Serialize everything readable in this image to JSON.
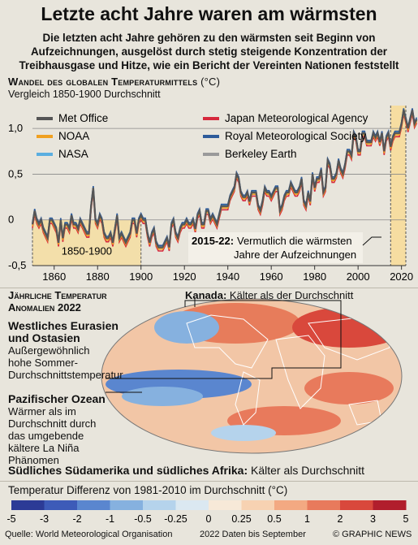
{
  "title": "Letzte acht Jahre waren am wärmsten",
  "subtitle": "Die letzten acht Jahre gehören zu den wärmsten seit Beginn von Aufzeichnungen, ausgelöst durch stetig steigende Konzentration der Treibhausgase und Hitze, wie ein Bericht der Vereinten Nationen feststellt",
  "line_chart": {
    "title": "Wandel des globalen Temperaturmittels",
    "unit": "(°C)",
    "subtitle": "Vergleich 1850-1900 Durchschnitt",
    "baseline_label": "1850-1900",
    "annotation_years": "2015-22:",
    "annotation_text": "Vermutlich die wärmsten Jahre der Aufzeichnungen",
    "y_ticks": [
      "1,0",
      "0,5",
      "0",
      "-0,5"
    ],
    "x_ticks": [
      "1860",
      "1880",
      "1900",
      "1920",
      "1940",
      "1960",
      "1980",
      "2000",
      "2020"
    ]
  },
  "map": {
    "section_title_1": "Jährliche Temperatur",
    "section_title_2": "Anomalien 2022",
    "canada_label": "Kanada:",
    "canada_text": "Kälter als der Durchschnitt",
    "eurasia_title": "Westliches Eurasien und Ostasien",
    "eurasia_text": "Außergewöhnlich hohe Sommer-Durchschnittstemperatur",
    "pacific_title": "Pazifischer Ozean",
    "pacific_text": "Wärmer als im Durchschnitt durch das umgebende kältere La Niña Phänomen",
    "south_label": "Südliches Südamerika und südliches  Afrika:",
    "south_text": "Kälter als Durchschnitt"
  },
  "scale": {
    "title": "Temperatur Differenz von 1981-2010 im Durchschnitt (°C)",
    "ticks": [
      "-5",
      "-3",
      "-2",
      "-1",
      "-0.5",
      "-0.25",
      "0",
      "0.25",
      "0.5",
      "1",
      "2",
      "3",
      "5"
    ],
    "colors": [
      "#2c3b96",
      "#3d5bb8",
      "#5a86cf",
      "#86b1df",
      "#b5d3ec",
      "#dbe8f1",
      "#f7e9d8",
      "#f7d2b2",
      "#f3a982",
      "#e87a5c",
      "#d9483c",
      "#b11e2c"
    ]
  },
  "footer": {
    "source": "Quelle: World Meteorological Organisation",
    "note": "2022 Daten bis September",
    "credit": "© GRAPHIC NEWS"
  },
  "chart_data": {
    "type": "line",
    "title": "Wandel des globalen Temperaturmittels (°C)",
    "subtitle": "Vergleich 1850-1900 Durchschnitt",
    "xlim": [
      1850,
      2022
    ],
    "ylim": [
      -0.5,
      1.25
    ],
    "x_ticks": [
      1860,
      1880,
      1900,
      1920,
      1940,
      1960,
      1980,
      2000,
      2020
    ],
    "y_ticks": [
      1.0,
      0.5,
      0,
      -0.5
    ],
    "highlight_ranges": [
      {
        "label": "1850-1900",
        "from": 1850,
        "to": 1900
      },
      {
        "label": "2015-22",
        "from": 2015,
        "to": 2022
      }
    ],
    "years_start": 1850,
    "series": [
      {
        "name": "Met Office",
        "color": "#555555",
        "values": [
          -0.05,
          0.1,
          0.0,
          -0.05,
          0.0,
          -0.1,
          -0.15,
          -0.2,
          0.0,
          0.0,
          -0.05,
          -0.1,
          -0.25,
          0.0,
          -0.2,
          -0.05,
          -0.05,
          -0.1,
          0.05,
          -0.05,
          -0.05,
          -0.1,
          0.0,
          -0.05,
          -0.1,
          -0.15,
          -0.15,
          0.15,
          0.35,
          0.0,
          -0.05,
          0.05,
          0.0,
          -0.15,
          -0.2,
          -0.2,
          -0.15,
          -0.25,
          -0.1,
          0.05,
          -0.2,
          -0.15,
          -0.2,
          -0.25,
          -0.2,
          -0.15,
          0.0,
          0.0,
          -0.15,
          0.0,
          0.05,
          0.0,
          0.0,
          -0.15,
          -0.25,
          -0.15,
          -0.1,
          -0.25,
          -0.3,
          -0.3,
          -0.3,
          -0.25,
          -0.2,
          -0.3,
          -0.05,
          0.0,
          -0.15,
          -0.2,
          -0.1,
          -0.05,
          -0.05,
          0.0,
          -0.05,
          -0.05,
          0.0,
          -0.1,
          0.05,
          0.1,
          -0.05,
          -0.05,
          0.1,
          0.1,
          0.0,
          0.05,
          0.0,
          -0.05,
          0.05,
          0.15,
          0.15,
          0.15,
          0.15,
          0.25,
          0.3,
          0.35,
          0.5,
          0.45,
          0.3,
          0.25,
          0.25,
          0.3,
          0.2,
          0.3,
          0.3,
          0.3,
          0.15,
          0.1,
          0.2,
          0.35,
          0.3,
          0.3,
          0.25,
          0.3,
          0.35,
          0.35,
          0.1,
          0.15,
          0.25,
          0.3,
          0.3,
          0.4,
          0.35,
          0.3,
          0.3,
          0.35,
          0.45,
          0.2,
          0.15,
          0.3,
          0.2,
          0.5,
          0.35,
          0.45,
          0.45,
          0.55,
          0.3,
          0.35,
          0.65,
          0.6,
          0.45,
          0.45,
          0.5,
          0.65,
          0.55,
          0.5,
          0.6,
          0.75,
          0.75,
          0.7,
          0.95,
          0.9,
          0.75,
          0.75,
          0.95,
          0.95,
          0.85,
          0.85,
          0.85,
          0.95,
          0.9,
          0.95,
          0.85,
          0.95,
          0.75,
          0.9,
          0.95,
          0.8,
          0.9,
          0.95,
          0.95,
          0.95,
          1.05,
          1.2,
          1.1,
          1.0,
          1.1,
          1.2,
          1.05,
          1.1
        ]
      },
      {
        "name": "NOAA",
        "color": "#f0a020"
      },
      {
        "name": "NASA",
        "color": "#5aaee0"
      },
      {
        "name": "Japan Meteorological Agency",
        "color": "#d6283c"
      },
      {
        "name": "Royal Meteorological Society",
        "color": "#2e5b9a"
      },
      {
        "name": "Berkeley Earth",
        "color": "#9a9a9a"
      }
    ]
  }
}
